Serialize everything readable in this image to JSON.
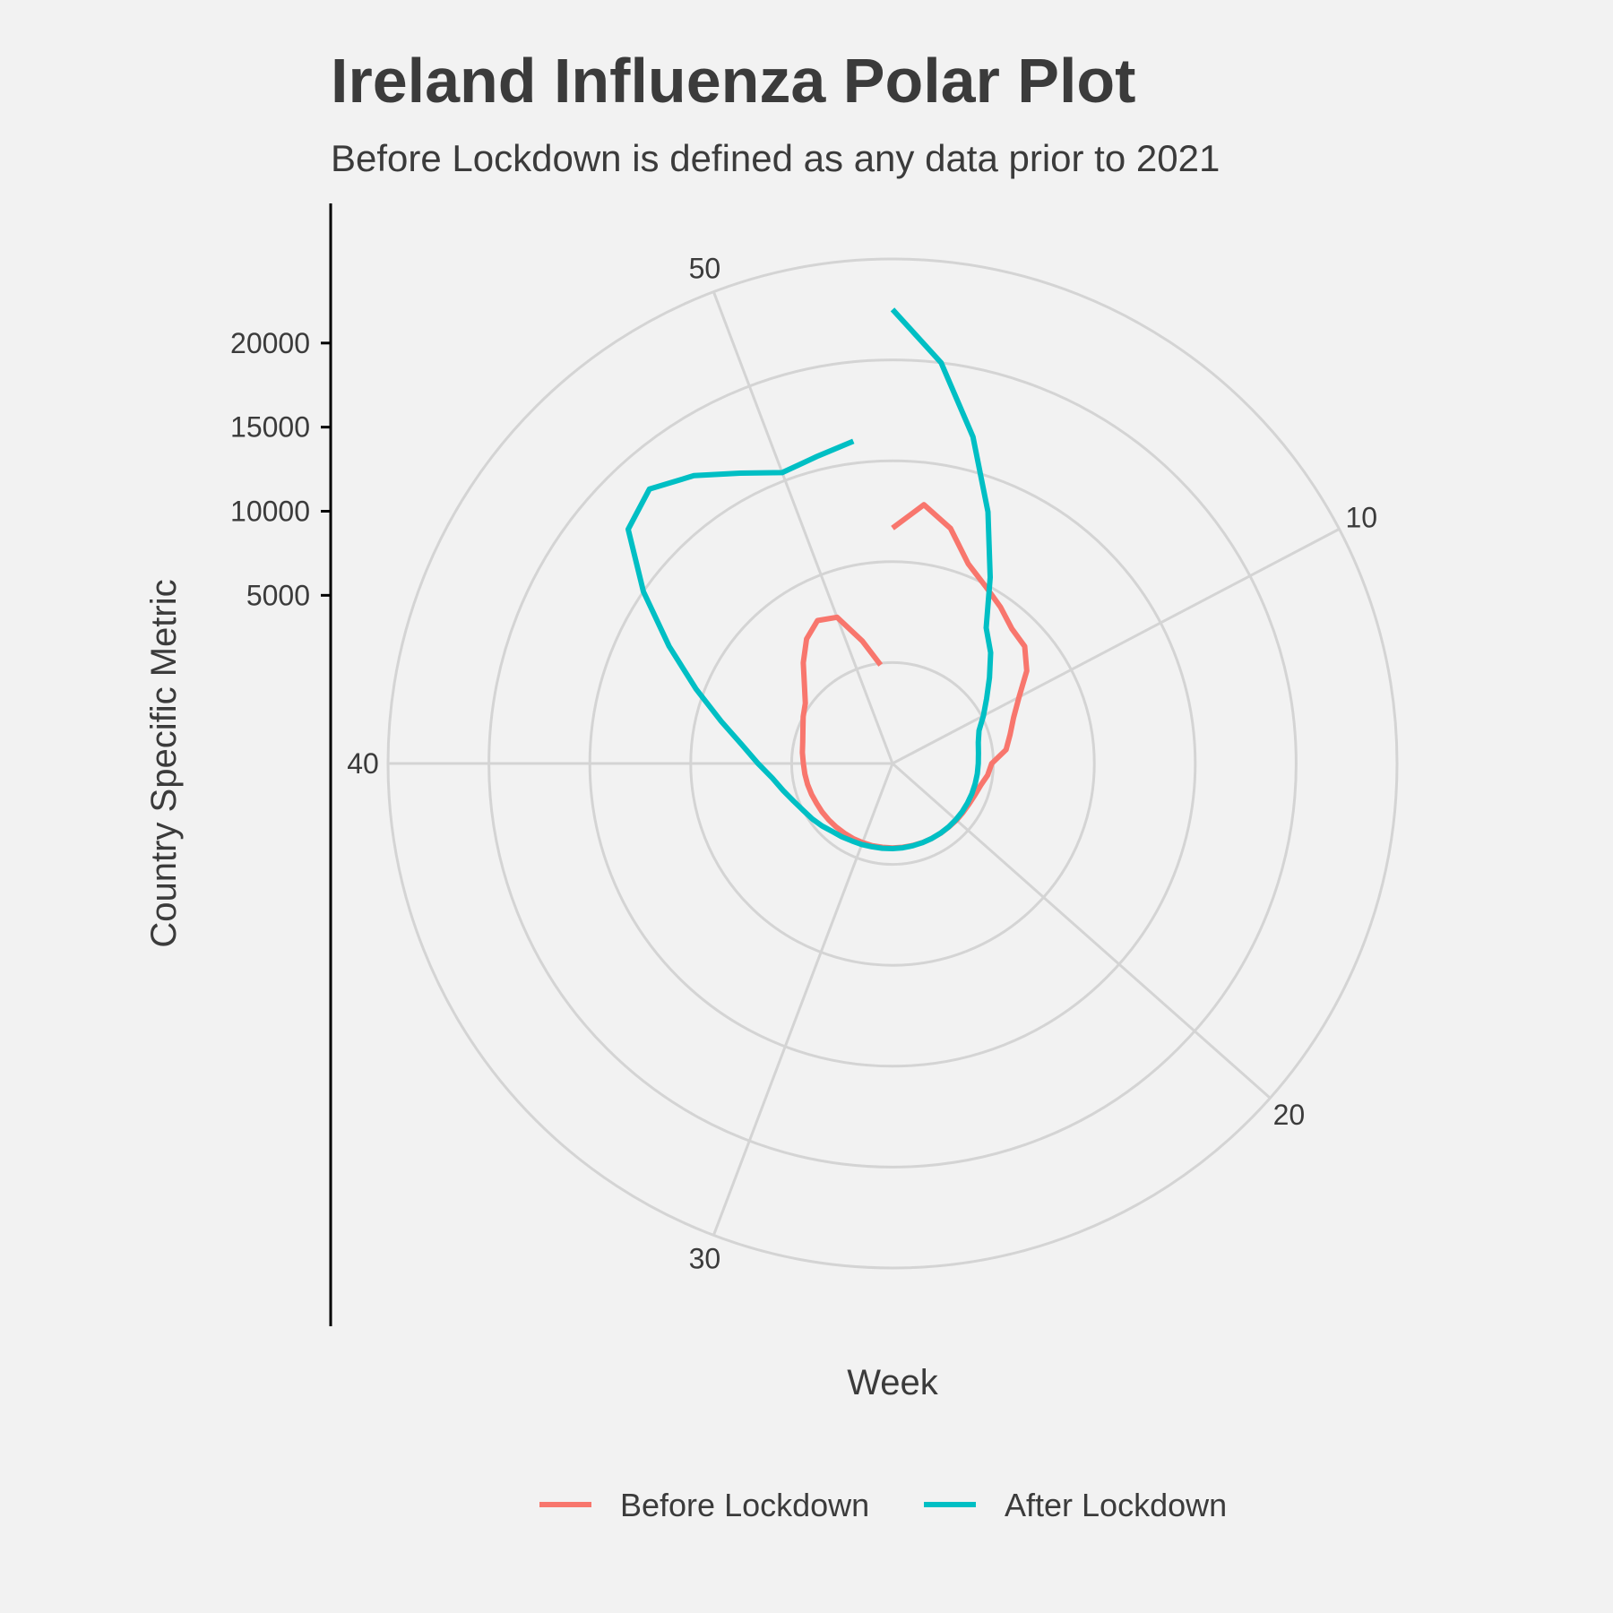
{
  "chart_data": {
    "type": "line",
    "coord": "polar",
    "title": "Ireland Influenza Polar Plot",
    "subtitle": "Before Lockdown is defined as any data prior to 2021",
    "xlabel": "Week",
    "ylabel": "Country Specific Metric",
    "theta_ticks": [
      10,
      20,
      30,
      40,
      50
    ],
    "theta_range": [
      1,
      53
    ],
    "r_ticks": [
      5000,
      10000,
      15000,
      20000
    ],
    "r_tick_labels": [
      "5000",
      "10000",
      "15000",
      "20000"
    ],
    "r_range": [
      -5000,
      20000
    ],
    "grid": true,
    "legend_position": "bottom",
    "series": [
      {
        "name": "Before Lockdown",
        "color": "#F8766D",
        "x": [
          1,
          2,
          3,
          4,
          5,
          6,
          7,
          8,
          9,
          10,
          11,
          12,
          13,
          14,
          15,
          16,
          17,
          18,
          19,
          20,
          21,
          22,
          23,
          24,
          25,
          26,
          27,
          28,
          29,
          30,
          31,
          32,
          33,
          34,
          35,
          36,
          37,
          38,
          39,
          40,
          41,
          42,
          43,
          44,
          45,
          46,
          47,
          48,
          49,
          50,
          51,
          52
        ],
        "y": [
          9000,
          10500,
          9400,
          7700,
          6900,
          6300,
          5700,
          5500,
          4700,
          3500,
          2700,
          2200,
          1800,
          900,
          700,
          400,
          250,
          150,
          100,
          80,
          50,
          40,
          30,
          30,
          20,
          20,
          20,
          20,
          30,
          30,
          40,
          40,
          50,
          60,
          80,
          100,
          150,
          200,
          250,
          300,
          400,
          500,
          700,
          1000,
          1300,
          2000,
          3000,
          4000,
          4600,
          4300,
          2500,
          900
        ]
      },
      {
        "name": "After Lockdown",
        "color": "#00BFC4",
        "x": [
          1,
          2,
          3,
          4,
          5,
          6,
          7,
          8,
          9,
          10,
          11,
          12,
          13,
          14,
          15,
          16,
          17,
          18,
          19,
          20,
          21,
          22,
          23,
          24,
          25,
          26,
          27,
          28,
          29,
          30,
          31,
          32,
          33,
          34,
          35,
          36,
          37,
          38,
          39,
          40,
          41,
          42,
          43,
          44,
          45,
          46,
          47,
          48,
          49,
          50,
          51,
          52
        ],
        "y": [
          22000,
          19000,
          15000,
          11000,
          7500,
          4800,
          3800,
          2700,
          1800,
          1100,
          500,
          250,
          150,
          100,
          80,
          60,
          50,
          40,
          40,
          30,
          30,
          30,
          30,
          30,
          40,
          50,
          60,
          80,
          100,
          150,
          200,
          300,
          400,
          600,
          800,
          1000,
          1300,
          1700,
          2200,
          3000,
          4000,
          5500,
          7500,
          10000,
          13000,
          16000,
          16800,
          15800,
          14500,
          13500,
          13800,
          14300
        ]
      }
    ]
  }
}
